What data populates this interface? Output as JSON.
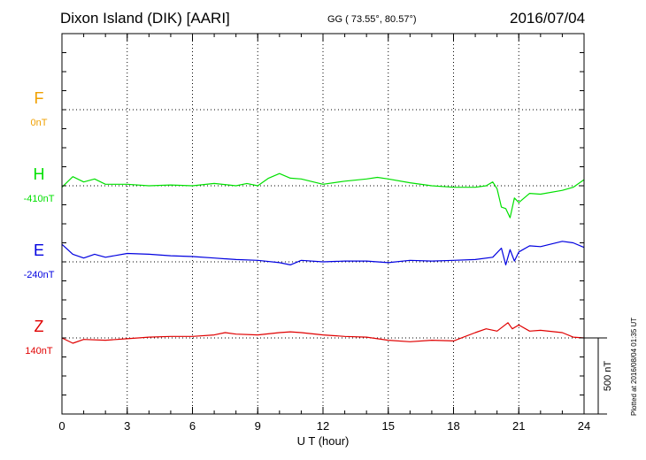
{
  "header": {
    "station": "Dixon Island (DIK)  [AARI]",
    "coords": "GG ( 73.55°,  80.57°)",
    "date": "2016/07/04"
  },
  "footer": {
    "plotted": "Plotted at 2016/08/04 01:35 UT"
  },
  "chart_data": {
    "type": "line",
    "xlabel": "U T (hour)",
    "xlim": [
      0,
      24
    ],
    "xticks": [
      "0",
      "3",
      "6",
      "9",
      "12",
      "15",
      "18",
      "21",
      "24"
    ],
    "scale_bar_label": "500 nT",
    "scale_bar_nT": 500,
    "series": [
      {
        "name": "F",
        "offset_label": "0nT",
        "color": "#f0a000",
        "x": [],
        "y": []
      },
      {
        "name": "H",
        "offset_label": "-410nT",
        "color": "#00e000",
        "x": [
          0,
          0.5,
          1,
          1.5,
          2,
          3,
          4,
          5,
          6,
          7,
          8,
          8.5,
          9,
          9.5,
          10,
          10.5,
          11,
          12,
          13,
          14,
          14.5,
          15,
          16,
          17,
          18,
          19,
          19.5,
          19.8,
          20.0,
          20.2,
          20.4,
          20.6,
          20.8,
          21,
          21.5,
          22,
          23,
          23.5,
          24
        ],
        "y": [
          -420,
          -350,
          -385,
          -365,
          -400,
          -400,
          -410,
          -405,
          -410,
          -395,
          -410,
          -395,
          -410,
          -360,
          -330,
          -360,
          -365,
          -400,
          -380,
          -365,
          -355,
          -365,
          -390,
          -410,
          -420,
          -420,
          -410,
          -385,
          -430,
          -550,
          -560,
          -620,
          -490,
          -520,
          -460,
          -465,
          -440,
          -420,
          -370
        ]
      },
      {
        "name": "E",
        "offset_label": "-240nT",
        "color": "#0000e0",
        "x": [
          0,
          0.5,
          1,
          1.5,
          2,
          3,
          4,
          5,
          6,
          7,
          8,
          9,
          10,
          10.5,
          11,
          12,
          13,
          14,
          15,
          16,
          17,
          18,
          19,
          19.8,
          20.2,
          20.4,
          20.6,
          20.8,
          21,
          21.5,
          22,
          23,
          23.5,
          24
        ],
        "y": [
          -125,
          -190,
          -215,
          -190,
          -210,
          -185,
          -190,
          -200,
          -205,
          -215,
          -225,
          -230,
          -245,
          -260,
          -230,
          -240,
          -235,
          -235,
          -245,
          -230,
          -235,
          -230,
          -225,
          -210,
          -150,
          -260,
          -160,
          -235,
          -175,
          -135,
          -140,
          -105,
          -115,
          -145
        ]
      },
      {
        "name": "Z",
        "offset_label": "140nT",
        "color": "#e00000",
        "x": [
          0,
          0.5,
          1,
          2,
          3,
          4,
          5,
          6,
          7,
          7.5,
          8,
          9,
          10,
          10.5,
          11,
          12,
          13,
          14,
          15,
          16,
          17,
          18,
          19,
          19.5,
          20,
          20.5,
          20.7,
          21,
          21.5,
          22,
          23,
          23.5,
          24
        ],
        "y": [
          140,
          105,
          130,
          125,
          135,
          145,
          150,
          150,
          160,
          175,
          165,
          160,
          175,
          180,
          175,
          160,
          150,
          145,
          125,
          115,
          125,
          120,
          175,
          200,
          185,
          240,
          200,
          225,
          185,
          190,
          175,
          145,
          140
        ]
      }
    ]
  }
}
